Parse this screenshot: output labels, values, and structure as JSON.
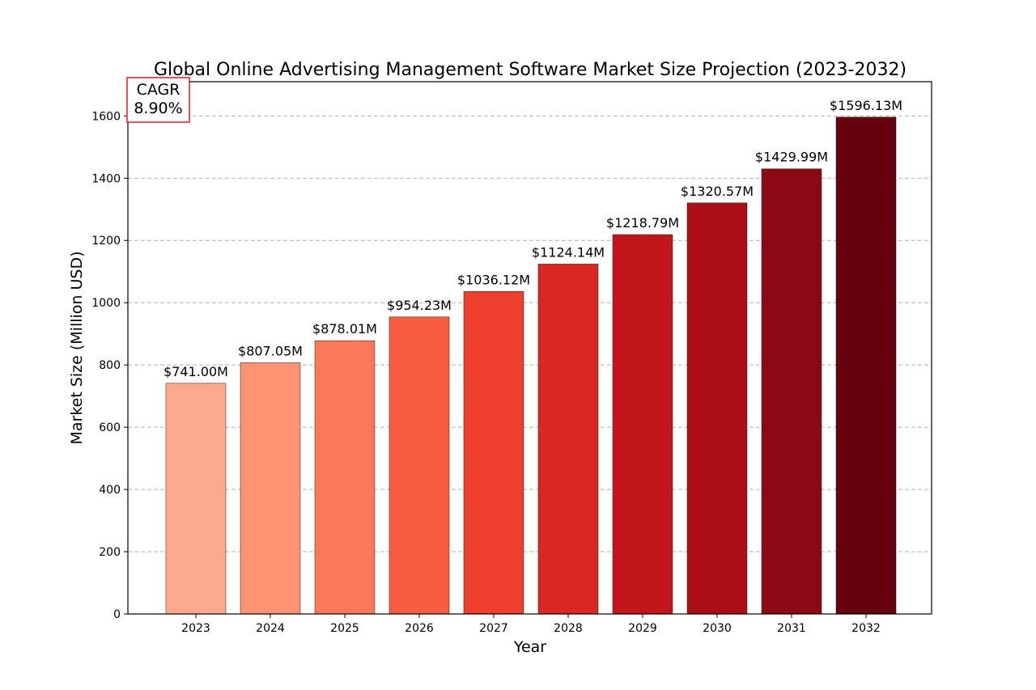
{
  "chart_data": {
    "type": "bar",
    "title": "Global Online Advertising Management Software Market Size Projection (2023-2032)",
    "xlabel": "Year",
    "ylabel": "Market Size (Million USD)",
    "categories": [
      "2023",
      "2024",
      "2025",
      "2026",
      "2027",
      "2028",
      "2029",
      "2030",
      "2031",
      "2032"
    ],
    "values": [
      741.0,
      807.05,
      878.01,
      954.23,
      1036.12,
      1124.14,
      1218.79,
      1320.57,
      1429.99,
      1596.13
    ],
    "data_labels": [
      "$741.00M",
      "$807.05M",
      "$878.01M",
      "$954.23M",
      "$1036.12M",
      "$1124.14M",
      "$1218.79M",
      "$1320.57M",
      "$1429.99M",
      "$1596.13M"
    ],
    "bar_colors": [
      "#fcaa8d",
      "#fc9373",
      "#fb7858",
      "#f85d41",
      "#ed3e2e",
      "#d92723",
      "#c3161b",
      "#a90f15",
      "#8a0912",
      "#67000d"
    ],
    "ylim": [
      0,
      1710
    ],
    "yticks": [
      0,
      200,
      400,
      600,
      800,
      1000,
      1200,
      1400,
      1600
    ],
    "grid": true,
    "annotation": {
      "line1": "CAGR",
      "line2": "8.90%",
      "border_color": "#e31a1c"
    }
  }
}
